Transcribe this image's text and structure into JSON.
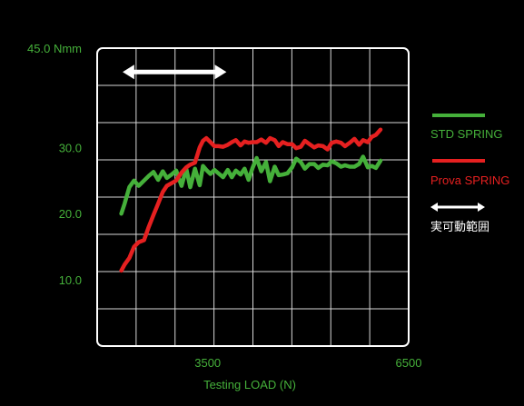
{
  "chart_data": {
    "type": "line",
    "title": "",
    "xlabel": "Testing LOAD (N)",
    "ylabel": "",
    "xlim": [
      1850,
      6500
    ],
    "ylim": [
      0,
      45
    ],
    "x_ticks": [
      {
        "value": 3500,
        "label": "3500"
      },
      {
        "value": 6500,
        "label": "6500"
      }
    ],
    "y_ticks": [
      {
        "value": 45,
        "label": "45.0 Nmm"
      },
      {
        "value": 30,
        "label": "30.0"
      },
      {
        "value": 20,
        "label": "20.0"
      },
      {
        "value": 10,
        "label": "10.0"
      }
    ],
    "grid": true,
    "series": [
      {
        "name": "STD SPRING",
        "color": "#45b03a",
        "x": [
          2210,
          2260,
          2330,
          2400,
          2470,
          2550,
          2620,
          2690,
          2760,
          2830,
          2890,
          2960,
          3030,
          3110,
          3180,
          3240,
          3310,
          3380,
          3430,
          3480,
          3540,
          3600,
          3660,
          3730,
          3800,
          3860,
          3920,
          3990,
          4050,
          4110,
          4170,
          4230,
          4300,
          4370,
          4430,
          4500,
          4560,
          4620,
          4690,
          4760,
          4820,
          4890,
          4950,
          5020,
          5090,
          5150,
          5220,
          5290,
          5350,
          5420,
          5490,
          5550,
          5620,
          5690,
          5760,
          5820,
          5890,
          5950,
          6010,
          6080
        ],
        "values": [
          20.0,
          21.5,
          24.0,
          25.0,
          24.2,
          25.0,
          25.7,
          26.3,
          25.1,
          26.4,
          25.4,
          25.9,
          26.5,
          24.2,
          26.8,
          24.0,
          26.8,
          24.3,
          27.2,
          26.6,
          26.0,
          26.6,
          26.1,
          25.5,
          26.6,
          25.5,
          26.5,
          25.9,
          26.8,
          25.1,
          26.9,
          28.4,
          26.4,
          27.8,
          24.9,
          27.1,
          25.8,
          25.9,
          26.1,
          27.0,
          28.3,
          27.8,
          26.8,
          27.5,
          27.5,
          26.9,
          27.4,
          27.3,
          27.9,
          27.6,
          27.1,
          27.3,
          27.1,
          27.1,
          27.5,
          28.6,
          27.0,
          27.2,
          26.9,
          28.0
        ]
      },
      {
        "name": "Prova SPRING",
        "color": "#e62020",
        "x": [
          2210,
          2260,
          2330,
          2400,
          2470,
          2550,
          2620,
          2690,
          2760,
          2830,
          2890,
          2960,
          3030,
          3110,
          3180,
          3240,
          3310,
          3380,
          3430,
          3480,
          3540,
          3600,
          3660,
          3730,
          3800,
          3860,
          3920,
          3990,
          4050,
          4110,
          4170,
          4230,
          4300,
          4370,
          4430,
          4500,
          4560,
          4620,
          4690,
          4760,
          4820,
          4890,
          4950,
          5020,
          5090,
          5150,
          5220,
          5290,
          5350,
          5420,
          5490,
          5550,
          5620,
          5690,
          5760,
          5820,
          5890,
          5950,
          6010,
          6080
        ],
        "values": [
          11.4,
          12.3,
          13.3,
          15.0,
          15.7,
          16.0,
          18.0,
          19.8,
          21.5,
          23.3,
          24.2,
          24.6,
          25.0,
          26.2,
          27.0,
          27.4,
          27.7,
          30.0,
          31.0,
          31.4,
          30.8,
          30.2,
          30.2,
          30.1,
          30.4,
          30.8,
          31.1,
          30.3,
          30.9,
          30.7,
          30.8,
          30.8,
          31.2,
          30.7,
          31.4,
          31.1,
          30.2,
          30.8,
          30.5,
          30.5,
          29.9,
          30.1,
          31.0,
          30.5,
          30.0,
          30.3,
          30.2,
          29.7,
          30.7,
          30.9,
          30.7,
          30.2,
          30.7,
          31.3,
          30.4,
          31.1,
          30.8,
          31.6,
          31.9,
          32.7
        ]
      }
    ],
    "annotations": [
      {
        "type": "double-arrow",
        "color": "#ffffff",
        "x_range": [
          2230,
          3780
        ],
        "y": 41.4
      }
    ],
    "legend": {
      "placement": "right",
      "items": [
        {
          "label": "STD SPRING",
          "color": "#45b03a",
          "kind": "line"
        },
        {
          "label": "Prova SPRING",
          "color": "#e62020",
          "kind": "line"
        },
        {
          "label": "実可動範囲",
          "color": "#ffffff",
          "kind": "double-arrow"
        }
      ]
    },
    "colors": {
      "background": "#000000",
      "axis": "#ffffff",
      "grid": "#d8d8d8",
      "text": "#45b03a"
    }
  }
}
